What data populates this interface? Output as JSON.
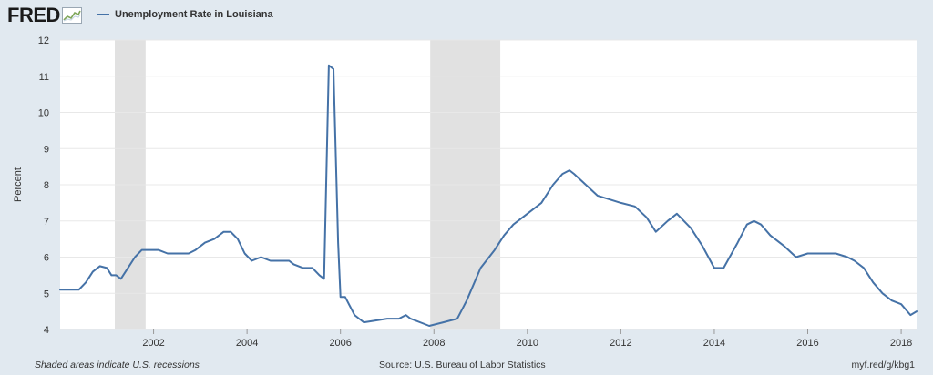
{
  "header": {
    "logo_text": "FRED",
    "logo_icon": "line-chart-icon",
    "legend_label": "Unemployment Rate in Louisiana"
  },
  "footer": {
    "recession_note": "Shaded areas indicate U.S. recessions",
    "source": "Source: U.S. Bureau of Labor Statistics",
    "short_url": "myf.red/g/kbg1"
  },
  "colors": {
    "frame_bg": "#e1e9f0",
    "plot_bg": "#ffffff",
    "series": "#4572a7",
    "recession": "#e1e1e1",
    "grid": "#e8e8e8"
  },
  "chart_data": {
    "type": "line",
    "title": "",
    "xlabel": "",
    "ylabel": "Percent",
    "xlim": [
      2000.0,
      2018.33
    ],
    "ylim": [
      4,
      12
    ],
    "yticks": [
      4,
      5,
      6,
      7,
      8,
      9,
      10,
      11,
      12
    ],
    "xticks": [
      2002,
      2004,
      2006,
      2008,
      2010,
      2012,
      2014,
      2016,
      2018
    ],
    "grid": true,
    "legend": "top-left",
    "recessions": [
      [
        2001.17,
        2001.83
      ],
      [
        2007.92,
        2009.42
      ]
    ],
    "series": [
      {
        "name": "Unemployment Rate in Louisiana",
        "x": [
          2000.0,
          2000.4,
          2000.55,
          2000.7,
          2000.85,
          2001.0,
          2001.1,
          2001.2,
          2001.3,
          2001.45,
          2001.6,
          2001.75,
          2001.9,
          2002.1,
          2002.3,
          2002.5,
          2002.75,
          2002.9,
          2003.1,
          2003.3,
          2003.5,
          2003.65,
          2003.8,
          2003.95,
          2004.1,
          2004.3,
          2004.5,
          2004.9,
          2005.0,
          2005.2,
          2005.4,
          2005.55,
          2005.65,
          2005.75,
          2005.85,
          2005.95,
          2006.0,
          2006.1,
          2006.3,
          2006.5,
          2006.75,
          2007.0,
          2007.25,
          2007.4,
          2007.5,
          2007.8,
          2007.9,
          2008.2,
          2008.5,
          2008.7,
          2009.0,
          2009.3,
          2009.5,
          2009.7,
          2010.0,
          2010.3,
          2010.55,
          2010.75,
          2010.9,
          2011.0,
          2011.5,
          2012.0,
          2012.3,
          2012.55,
          2012.75,
          2013.0,
          2013.2,
          2013.5,
          2013.75,
          2014.0,
          2014.2,
          2014.5,
          2014.7,
          2014.85,
          2015.0,
          2015.2,
          2015.5,
          2015.75,
          2016.0,
          2016.3,
          2016.6,
          2016.85,
          2017.0,
          2017.2,
          2017.4,
          2017.6,
          2017.8,
          2018.0,
          2018.2,
          2018.33
        ],
        "values": [
          5.1,
          5.1,
          5.3,
          5.6,
          5.75,
          5.7,
          5.5,
          5.5,
          5.4,
          5.7,
          6.0,
          6.2,
          6.2,
          6.2,
          6.1,
          6.1,
          6.1,
          6.2,
          6.4,
          6.5,
          6.7,
          6.7,
          6.5,
          6.1,
          5.9,
          6.0,
          5.9,
          5.9,
          5.8,
          5.7,
          5.7,
          5.5,
          5.4,
          11.3,
          11.2,
          6.4,
          4.9,
          4.9,
          4.4,
          4.2,
          4.25,
          4.3,
          4.3,
          4.4,
          4.3,
          4.15,
          4.1,
          4.2,
          4.3,
          4.8,
          5.7,
          6.2,
          6.6,
          6.9,
          7.2,
          7.5,
          8.0,
          8.3,
          8.4,
          8.3,
          7.7,
          7.5,
          7.4,
          7.1,
          6.7,
          7.0,
          7.2,
          6.8,
          6.3,
          5.7,
          5.7,
          6.4,
          6.9,
          7.0,
          6.9,
          6.6,
          6.3,
          6.0,
          6.1,
          6.1,
          6.1,
          6.0,
          5.9,
          5.7,
          5.3,
          5.0,
          4.8,
          4.7,
          4.4,
          4.5
        ]
      }
    ]
  }
}
